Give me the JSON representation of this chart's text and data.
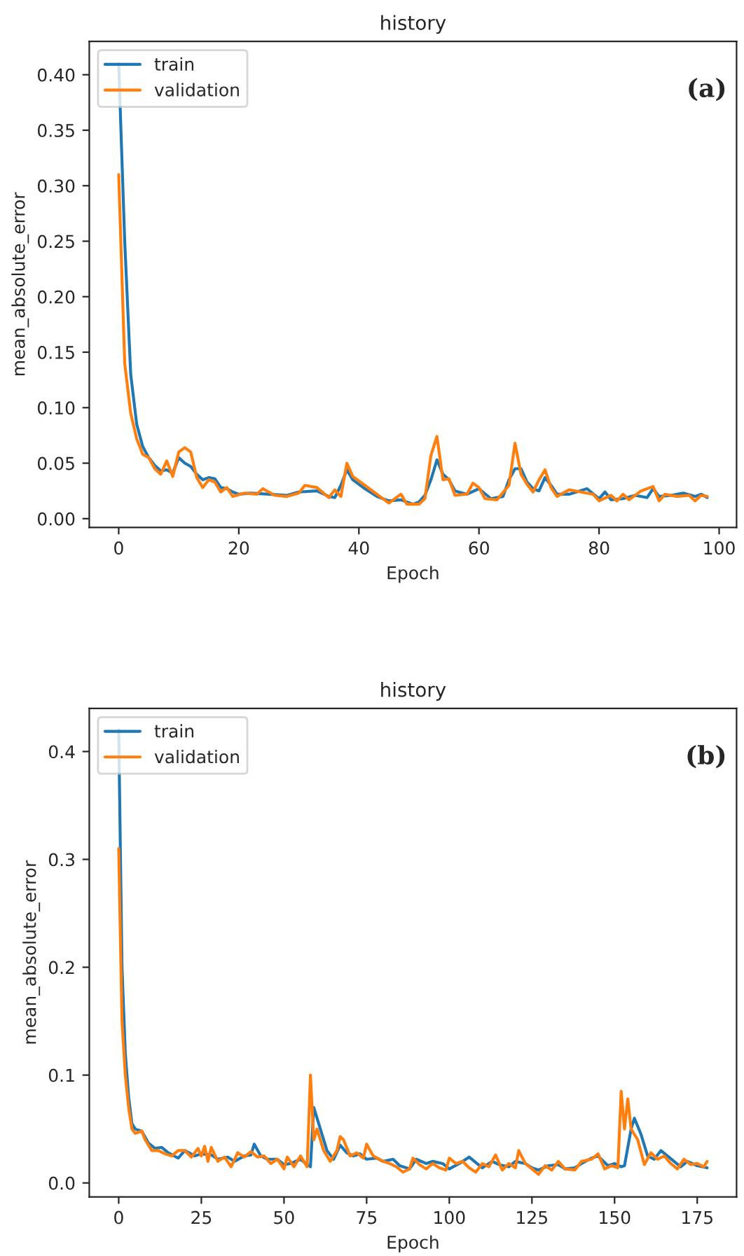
{
  "chart_data": [
    {
      "type": "line",
      "title": "history",
      "xlabel": "Epoch",
      "ylabel": "mean_absolute_error",
      "annotations": [
        "(a)"
      ],
      "legend": "top left",
      "grid": false,
      "xlim": [
        -4.9,
        102.9
      ],
      "xticks": [
        0,
        20,
        40,
        60,
        80,
        100
      ],
      "ylim": [
        -0.008,
        0.43
      ],
      "yticks": [
        {
          "value": 0,
          "label": "0.00"
        },
        {
          "value": 0.05,
          "label": "0.05"
        },
        {
          "value": 0.1,
          "label": "0.10"
        },
        {
          "value": 0.15,
          "label": "0.15"
        },
        {
          "value": 0.2,
          "label": "0.20"
        },
        {
          "value": 0.25,
          "label": "0.25"
        },
        {
          "value": 0.3,
          "label": "0.30"
        },
        {
          "value": 0.35,
          "label": "0.35"
        },
        {
          "value": 0.4,
          "label": "0.40"
        }
      ],
      "series": [
        {
          "name": "train",
          "color": "#1f77b4",
          "x": [
            0,
            1,
            2,
            3,
            4,
            5,
            6,
            7,
            8,
            9,
            10,
            11,
            12,
            13,
            14,
            15,
            16,
            17,
            18,
            19,
            20,
            22,
            25,
            28,
            30,
            33,
            35,
            36,
            37,
            38,
            39,
            41,
            43,
            45,
            47,
            49,
            50,
            51,
            52,
            53,
            54,
            55,
            56,
            58,
            60,
            62,
            64,
            65,
            66,
            67,
            68,
            69,
            70,
            71,
            72,
            73,
            75,
            78,
            80,
            81,
            82,
            84,
            86,
            88,
            89,
            90,
            92,
            94,
            96,
            97,
            98
          ],
          "values": [
            0.41,
            0.25,
            0.13,
            0.085,
            0.065,
            0.055,
            0.048,
            0.043,
            0.044,
            0.041,
            0.055,
            0.05,
            0.047,
            0.04,
            0.035,
            0.037,
            0.036,
            0.028,
            0.027,
            0.024,
            0.022,
            0.023,
            0.022,
            0.021,
            0.024,
            0.025,
            0.02,
            0.019,
            0.03,
            0.044,
            0.035,
            0.027,
            0.02,
            0.016,
            0.017,
            0.013,
            0.015,
            0.021,
            0.035,
            0.053,
            0.04,
            0.035,
            0.025,
            0.022,
            0.027,
            0.018,
            0.02,
            0.035,
            0.045,
            0.045,
            0.033,
            0.027,
            0.025,
            0.037,
            0.03,
            0.022,
            0.022,
            0.027,
            0.018,
            0.024,
            0.017,
            0.018,
            0.021,
            0.019,
            0.027,
            0.02,
            0.021,
            0.023,
            0.02,
            0.022,
            0.019
          ]
        },
        {
          "name": "validation",
          "color": "#ff7f0e",
          "x": [
            0,
            1,
            2,
            3,
            4,
            5,
            6,
            7,
            8,
            9,
            10,
            11,
            12,
            13,
            14,
            15,
            16,
            17,
            18,
            19,
            21,
            23,
            24,
            26,
            28,
            30,
            31,
            33,
            35,
            36,
            37,
            38,
            39,
            41,
            43,
            45,
            47,
            48,
            50,
            51,
            52,
            53,
            54,
            55,
            56,
            58,
            59,
            60,
            61,
            63,
            65,
            66,
            67,
            68,
            69,
            70,
            71,
            72,
            73,
            75,
            77,
            79,
            80,
            82,
            83,
            84,
            85,
            87,
            89,
            90,
            91,
            93,
            95,
            96,
            97,
            98
          ],
          "values": [
            0.31,
            0.14,
            0.095,
            0.072,
            0.058,
            0.055,
            0.045,
            0.04,
            0.052,
            0.038,
            0.06,
            0.064,
            0.06,
            0.037,
            0.028,
            0.035,
            0.033,
            0.024,
            0.028,
            0.02,
            0.023,
            0.022,
            0.027,
            0.021,
            0.02,
            0.023,
            0.03,
            0.028,
            0.019,
            0.026,
            0.02,
            0.05,
            0.038,
            0.03,
            0.022,
            0.014,
            0.022,
            0.013,
            0.013,
            0.018,
            0.057,
            0.074,
            0.035,
            0.036,
            0.021,
            0.022,
            0.032,
            0.028,
            0.018,
            0.017,
            0.03,
            0.068,
            0.04,
            0.031,
            0.024,
            0.035,
            0.044,
            0.028,
            0.02,
            0.026,
            0.024,
            0.022,
            0.016,
            0.021,
            0.016,
            0.022,
            0.017,
            0.025,
            0.029,
            0.016,
            0.022,
            0.02,
            0.021,
            0.016,
            0.021,
            0.02
          ]
        }
      ]
    },
    {
      "type": "line",
      "title": "history",
      "xlabel": "Epoch",
      "ylabel": "mean_absolute_error",
      "annotations": [
        "(b)"
      ],
      "legend": "top left",
      "grid": false,
      "xlim": [
        -8.9,
        186.9
      ],
      "xticks": [
        0,
        25,
        50,
        75,
        100,
        125,
        150,
        175
      ],
      "ylim": [
        -0.013,
        0.44
      ],
      "yticks": [
        {
          "value": 0,
          "label": "0.0"
        },
        {
          "value": 0.1,
          "label": "0.1"
        },
        {
          "value": 0.2,
          "label": "0.2"
        },
        {
          "value": 0.3,
          "label": "0.3"
        },
        {
          "value": 0.4,
          "label": "0.4"
        }
      ],
      "series": [
        {
          "name": "train",
          "color": "#1f77b4",
          "x": [
            0,
            1,
            2,
            3,
            4,
            5,
            7,
            9,
            11,
            13,
            15,
            18,
            20,
            23,
            25,
            28,
            30,
            33,
            35,
            38,
            40,
            41,
            43,
            45,
            48,
            50,
            52,
            55,
            57,
            58,
            59,
            60,
            61,
            63,
            65,
            67,
            69,
            71,
            73,
            75,
            78,
            80,
            83,
            85,
            88,
            90,
            93,
            95,
            98,
            100,
            103,
            106,
            108,
            110,
            113,
            115,
            118,
            120,
            123,
            125,
            127,
            130,
            133,
            135,
            138,
            140,
            143,
            145,
            148,
            150,
            152,
            153,
            155,
            156,
            158,
            160,
            162,
            164,
            166,
            168,
            170,
            172,
            175,
            178
          ],
          "values": [
            0.42,
            0.2,
            0.12,
            0.08,
            0.055,
            0.05,
            0.048,
            0.037,
            0.032,
            0.033,
            0.028,
            0.023,
            0.03,
            0.025,
            0.027,
            0.026,
            0.022,
            0.024,
            0.02,
            0.025,
            0.026,
            0.036,
            0.025,
            0.022,
            0.022,
            0.017,
            0.018,
            0.022,
            0.017,
            0.015,
            0.07,
            0.06,
            0.05,
            0.03,
            0.022,
            0.035,
            0.028,
            0.025,
            0.027,
            0.022,
            0.023,
            0.02,
            0.022,
            0.016,
            0.013,
            0.022,
            0.018,
            0.02,
            0.018,
            0.013,
            0.018,
            0.024,
            0.019,
            0.014,
            0.02,
            0.017,
            0.015,
            0.02,
            0.018,
            0.014,
            0.012,
            0.016,
            0.017,
            0.013,
            0.014,
            0.018,
            0.023,
            0.025,
            0.016,
            0.018,
            0.015,
            0.016,
            0.05,
            0.06,
            0.045,
            0.025,
            0.022,
            0.03,
            0.025,
            0.02,
            0.015,
            0.02,
            0.016,
            0.014
          ]
        },
        {
          "name": "validation",
          "color": "#ff7f0e",
          "x": [
            0,
            1,
            2,
            3,
            4,
            5,
            7,
            8,
            10,
            12,
            14,
            16,
            18,
            20,
            22,
            24,
            25,
            26,
            27,
            28,
            30,
            32,
            34,
            36,
            38,
            40,
            42,
            44,
            46,
            48,
            50,
            51,
            53,
            55,
            57,
            58,
            59,
            60,
            62,
            64,
            66,
            67,
            68,
            70,
            72,
            74,
            75,
            77,
            80,
            82,
            84,
            86,
            88,
            89,
            91,
            93,
            95,
            97,
            99,
            100,
            102,
            104,
            106,
            108,
            110,
            112,
            114,
            116,
            118,
            120,
            121,
            123,
            125,
            127,
            129,
            131,
            133,
            135,
            138,
            140,
            143,
            145,
            147,
            149,
            151,
            152,
            153,
            154,
            155,
            157,
            159,
            161,
            163,
            165,
            167,
            169,
            171,
            173,
            175,
            177,
            178
          ],
          "values": [
            0.31,
            0.15,
            0.1,
            0.07,
            0.05,
            0.046,
            0.048,
            0.04,
            0.03,
            0.03,
            0.027,
            0.025,
            0.03,
            0.03,
            0.024,
            0.032,
            0.025,
            0.034,
            0.02,
            0.033,
            0.02,
            0.024,
            0.015,
            0.028,
            0.024,
            0.029,
            0.024,
            0.025,
            0.018,
            0.022,
            0.013,
            0.024,
            0.015,
            0.025,
            0.015,
            0.1,
            0.04,
            0.05,
            0.03,
            0.02,
            0.03,
            0.043,
            0.04,
            0.025,
            0.028,
            0.023,
            0.036,
            0.025,
            0.02,
            0.018,
            0.015,
            0.01,
            0.013,
            0.023,
            0.017,
            0.013,
            0.018,
            0.014,
            0.012,
            0.023,
            0.018,
            0.02,
            0.014,
            0.01,
            0.018,
            0.015,
            0.026,
            0.012,
            0.018,
            0.014,
            0.03,
            0.018,
            0.013,
            0.008,
            0.016,
            0.012,
            0.02,
            0.013,
            0.012,
            0.02,
            0.022,
            0.027,
            0.013,
            0.016,
            0.014,
            0.085,
            0.05,
            0.078,
            0.05,
            0.04,
            0.017,
            0.028,
            0.022,
            0.025,
            0.018,
            0.013,
            0.022,
            0.017,
            0.018,
            0.015,
            0.02
          ]
        }
      ]
    }
  ]
}
